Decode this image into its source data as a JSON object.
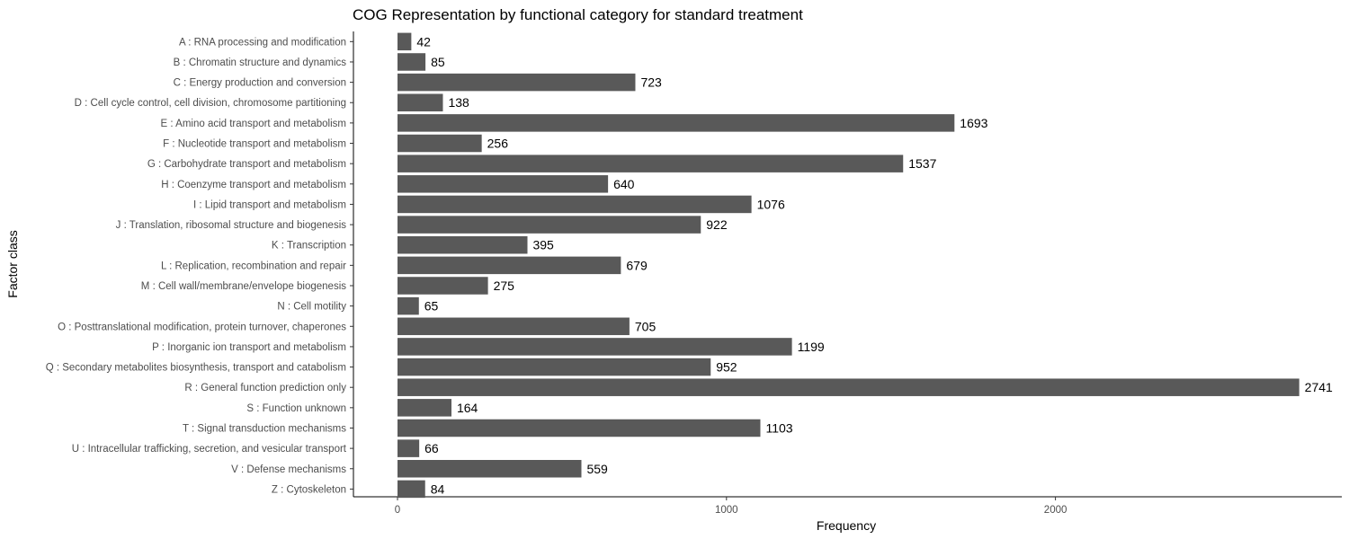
{
  "chart_data": {
    "type": "bar",
    "orientation": "horizontal",
    "title": "COG Representation by functional category for standard treatment",
    "xlabel": "Frequency",
    "ylabel": "Factor class",
    "xlim": [
      0,
      2741
    ],
    "xticks": [
      0,
      1000,
      2000
    ],
    "xtick_labels": [
      "0",
      "1000",
      "2000"
    ],
    "grid": false,
    "bar_color": "#595959",
    "categories": [
      "A : RNA processing and modification",
      "B : Chromatin structure and dynamics",
      "C : Energy production and conversion",
      "D : Cell cycle control, cell division, chromosome partitioning",
      "E : Amino acid transport and metabolism",
      "F : Nucleotide transport and metabolism",
      "G : Carbohydrate transport and metabolism",
      "H : Coenzyme transport and metabolism",
      "I : Lipid transport and metabolism",
      "J : Translation, ribosomal structure and biogenesis",
      "K : Transcription",
      "L : Replication, recombination and repair",
      "M : Cell wall/membrane/envelope biogenesis",
      "N : Cell motility",
      "O : Posttranslational modification, protein turnover, chaperones",
      "P : Inorganic ion transport and metabolism",
      "Q : Secondary metabolites biosynthesis, transport and catabolism",
      "R : General function prediction only",
      "S : Function unknown",
      "T : Signal transduction mechanisms",
      "U : Intracellular trafficking, secretion, and vesicular transport",
      "V : Defense mechanisms",
      "Z : Cytoskeleton"
    ],
    "values": [
      42,
      85,
      723,
      138,
      1693,
      256,
      1537,
      640,
      1076,
      922,
      395,
      679,
      275,
      65,
      705,
      1199,
      952,
      2741,
      164,
      1103,
      66,
      559,
      84
    ],
    "data_labels": [
      "42",
      "85",
      "723",
      "138",
      "1693",
      "256",
      "1537",
      "640",
      "1076",
      "922",
      "395",
      "679",
      "275",
      "65",
      "705",
      "1199",
      "952",
      "2741",
      "164",
      "1103",
      "66",
      "559",
      "84"
    ]
  }
}
